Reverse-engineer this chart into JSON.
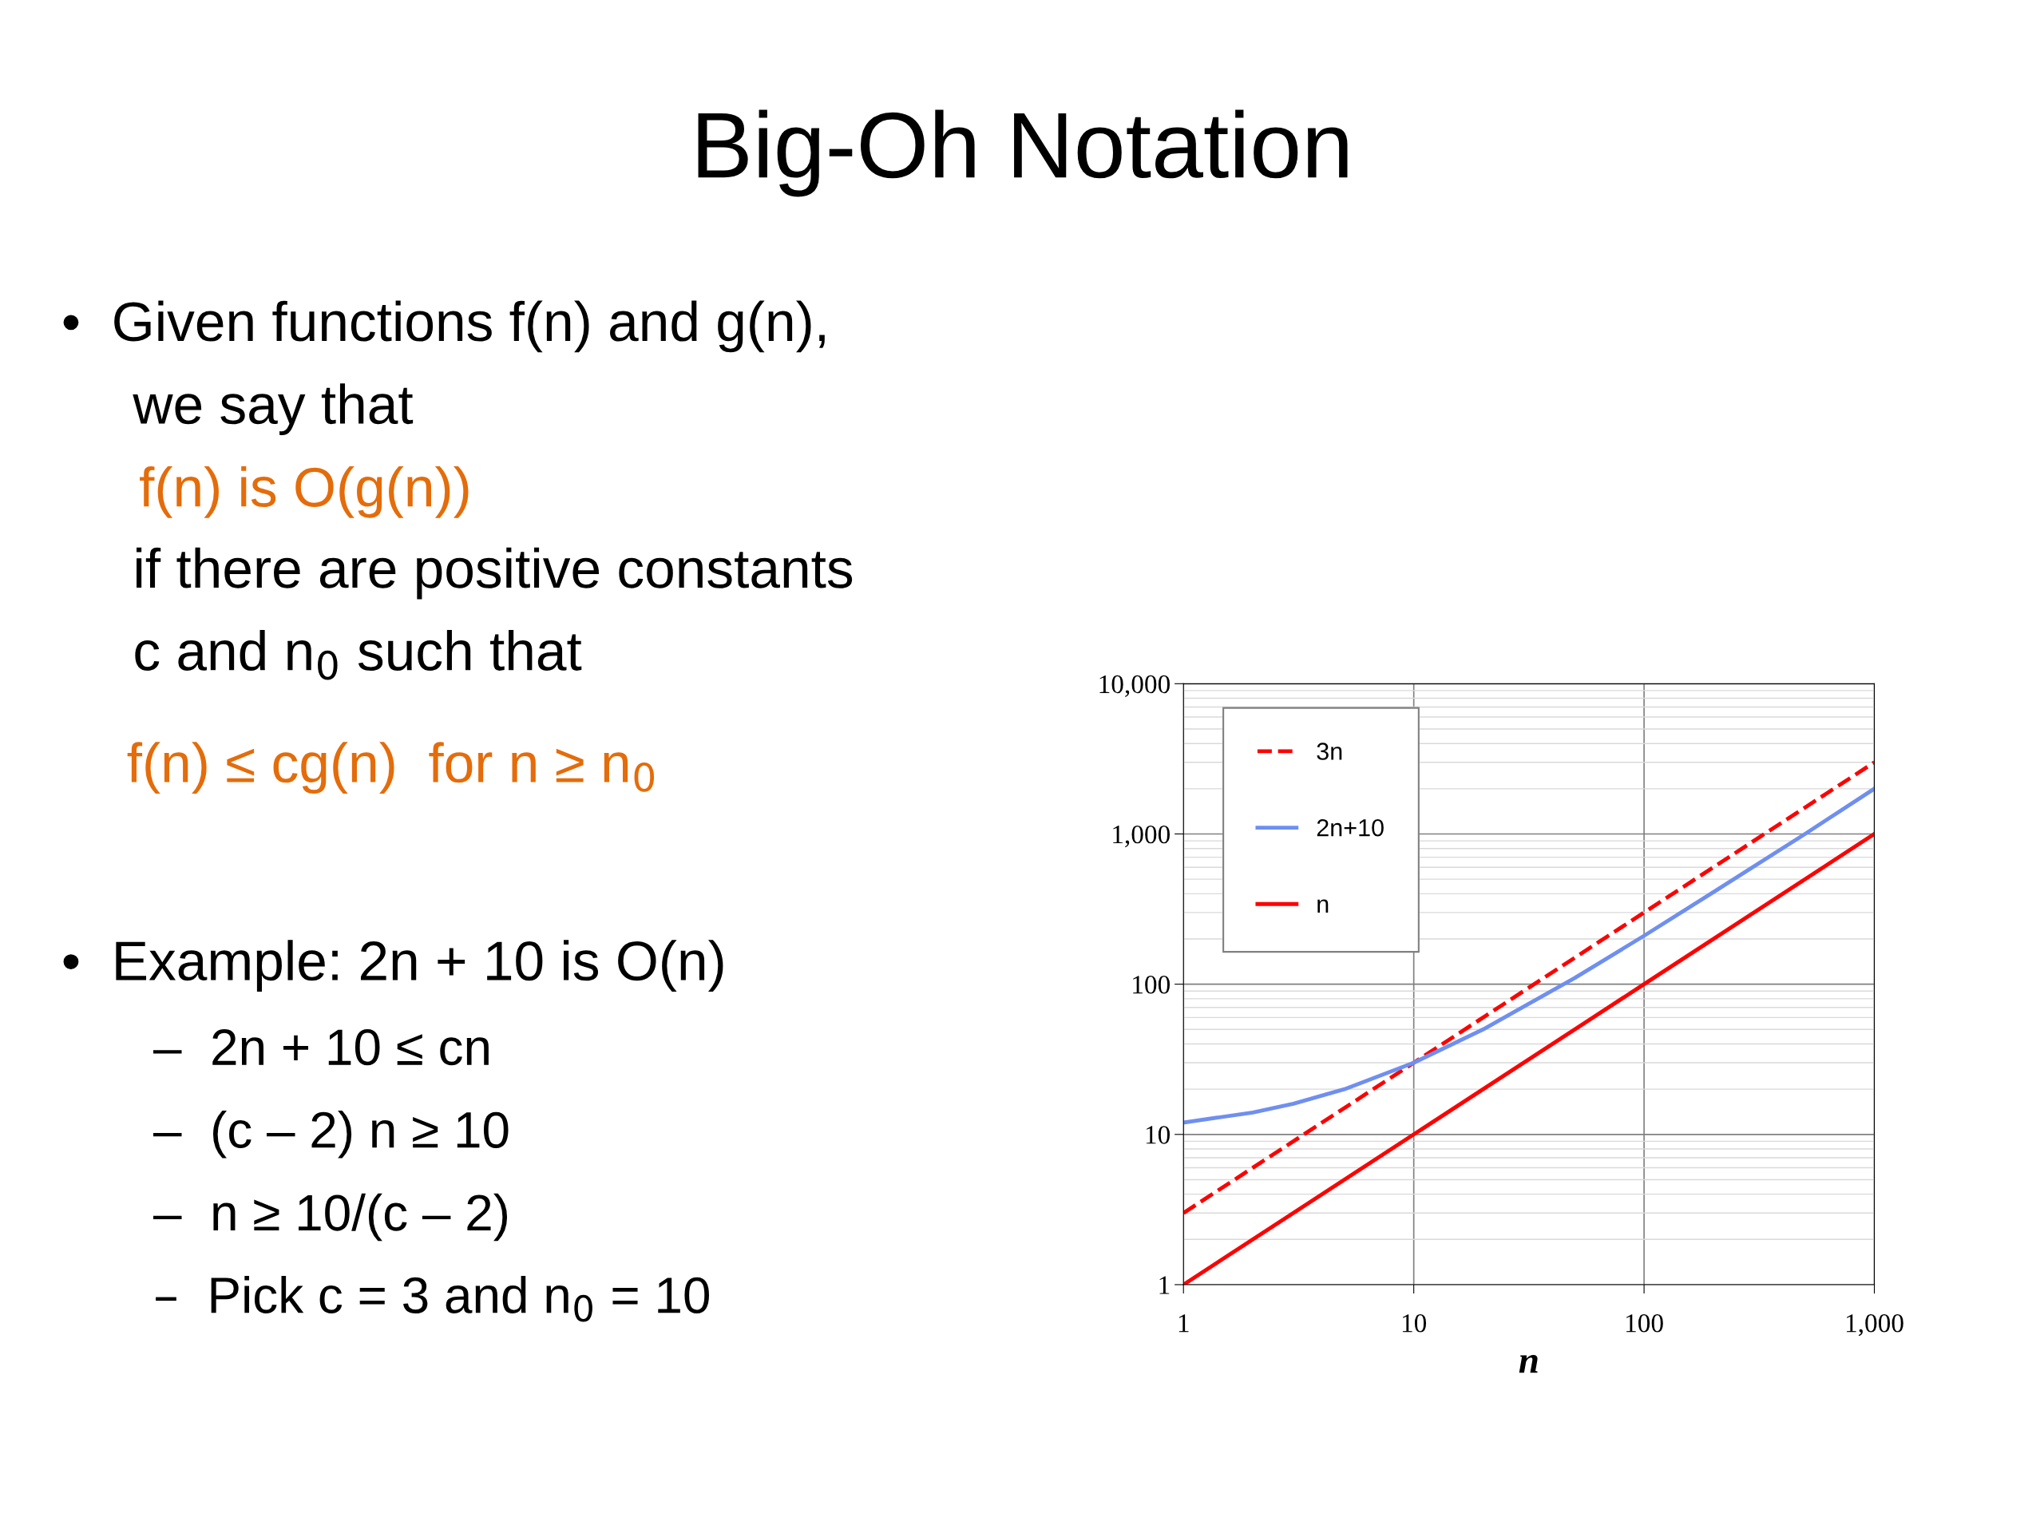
{
  "chart_data": {
    "type": "line",
    "title": "Big-Oh Notation",
    "xlabel": "n",
    "x": [
      1,
      2,
      3,
      5,
      10,
      20,
      50,
      100,
      200,
      500,
      1000
    ],
    "series": [
      {
        "name": "3n",
        "color": "#ff0000",
        "line_style": "dashed",
        "x": [
          1,
          10,
          100,
          1000
        ],
        "values": [
          3,
          30,
          300,
          3000
        ]
      },
      {
        "name": "2n+10",
        "color": "#6f8ff0",
        "line_style": "solid",
        "values": [
          12,
          14,
          16,
          20,
          30,
          50,
          110,
          210,
          410,
          1000,
          2000
        ]
      },
      {
        "name": "n",
        "color": "#ff0000",
        "line_style": "solid",
        "x": [
          1,
          10,
          100,
          1000
        ],
        "values": [
          1,
          10,
          100,
          1000
        ]
      }
    ],
    "log": "xy",
    "xlim": [
      1,
      1000
    ],
    "ylim": [
      1,
      10000
    ],
    "xticks": [
      1,
      10,
      {
        "value": 100,
        "label": "100"
      },
      {
        "value": 1000,
        "label": "1,000"
      }
    ],
    "yticks": [
      1,
      10,
      100,
      {
        "value": 1000,
        "label": "1,000"
      },
      {
        "value": 10000,
        "label": "10,000"
      }
    ],
    "grid": true,
    "legend": "top left",
    "marker": "none",
    "annotations": [
      "•  Given functions f(n) and g(n),",
      "we say that",
      "f(n) is O(g(n))",
      "if there are positive constants",
      "c and n$_{0}$ such that",
      "f(n) ≤ cg(n)  for n ≥ n$_{0}$",
      "•  Example: 2n + 10 is O(n)",
      "–  2n + 10 ≤ cn",
      "–  (c – 2) n ≥ 10",
      "–  n ≥ 10/(c – 2)",
      "–  Pick c = 3 and n$_{0}$ = 10"
    ]
  }
}
